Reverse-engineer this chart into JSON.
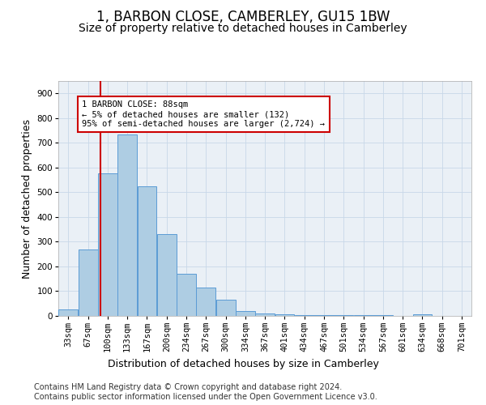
{
  "title": "1, BARBON CLOSE, CAMBERLEY, GU15 1BW",
  "subtitle": "Size of property relative to detached houses in Camberley",
  "xlabel": "Distribution of detached houses by size in Camberley",
  "ylabel": "Number of detached properties",
  "footer_line1": "Contains HM Land Registry data © Crown copyright and database right 2024.",
  "footer_line2": "Contains public sector information licensed under the Open Government Licence v3.0.",
  "categories": [
    "33sqm",
    "67sqm",
    "100sqm",
    "133sqm",
    "167sqm",
    "200sqm",
    "234sqm",
    "267sqm",
    "300sqm",
    "334sqm",
    "367sqm",
    "401sqm",
    "434sqm",
    "467sqm",
    "501sqm",
    "534sqm",
    "567sqm",
    "601sqm",
    "634sqm",
    "668sqm",
    "701sqm"
  ],
  "bar_heights": [
    25,
    270,
    575,
    735,
    525,
    330,
    170,
    115,
    65,
    20,
    10,
    5,
    4,
    4,
    3,
    3,
    2,
    0,
    5,
    0,
    0
  ],
  "ylim": [
    0,
    950
  ],
  "yticks": [
    0,
    100,
    200,
    300,
    400,
    500,
    600,
    700,
    800,
    900
  ],
  "bar_color": "#aecde3",
  "bar_edge_color": "#5b9bd5",
  "bar_linewidth": 0.7,
  "property_line_x": 88,
  "property_line_color": "#cc0000",
  "annotation_text": "1 BARBON CLOSE: 88sqm\n← 5% of detached houses are smaller (132)\n95% of semi-detached houses are larger (2,724) →",
  "annotation_box_color": "#cc0000",
  "bg_color": "#ffffff",
  "plot_bg_color": "#eaf0f6",
  "grid_color": "#c8d8e8",
  "title_fontsize": 12,
  "subtitle_fontsize": 10,
  "axis_label_fontsize": 9,
  "tick_fontsize": 7.5,
  "footer_fontsize": 7
}
